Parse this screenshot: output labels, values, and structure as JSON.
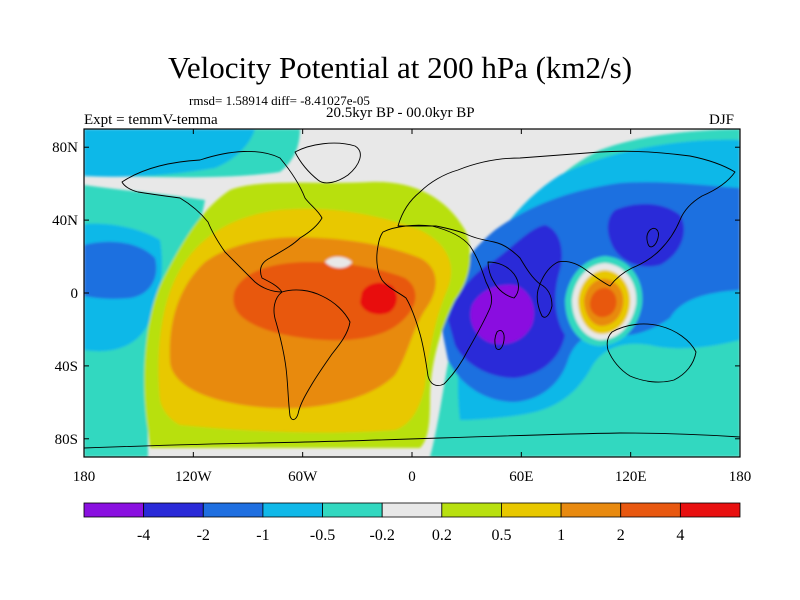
{
  "title": "Velocity Potential at 200 hPa (km2/s)",
  "stats_text": "rmsd= 1.58914 diff= -8.41027e-05",
  "experiment": "Expt = temmV-temma",
  "period": "20.5kyr BP - 00.0kyr BP",
  "season": "DJF",
  "map": {
    "lon_range": [
      -180,
      180
    ],
    "lat_range": [
      -90,
      90
    ],
    "x_ticks": [
      {
        "lon": -180,
        "label": "180"
      },
      {
        "lon": -120,
        "label": "120W"
      },
      {
        "lon": -60,
        "label": "60W"
      },
      {
        "lon": 0,
        "label": "0"
      },
      {
        "lon": 60,
        "label": "60E"
      },
      {
        "lon": 120,
        "label": "120E"
      },
      {
        "lon": 180,
        "label": "180"
      }
    ],
    "y_ticks": [
      {
        "lat": 80,
        "label": "80N"
      },
      {
        "lat": 40,
        "label": "40N"
      },
      {
        "lat": 0,
        "label": "0"
      },
      {
        "lat": -40,
        "label": "40S"
      },
      {
        "lat": -80,
        "label": "80S"
      }
    ]
  },
  "colorbar": {
    "colors": [
      "#8a10e0",
      "#2a2ad8",
      "#1f6fe0",
      "#10b8e8",
      "#32d8c0",
      "#e8e8e8",
      "#b8e010",
      "#e8c800",
      "#e88a10",
      "#e85810",
      "#e81010"
    ],
    "labels": [
      "-4",
      "-2",
      "-1",
      "-0.5",
      "-0.2",
      "0.2",
      "0.5",
      "1",
      "2",
      "4"
    ]
  }
}
